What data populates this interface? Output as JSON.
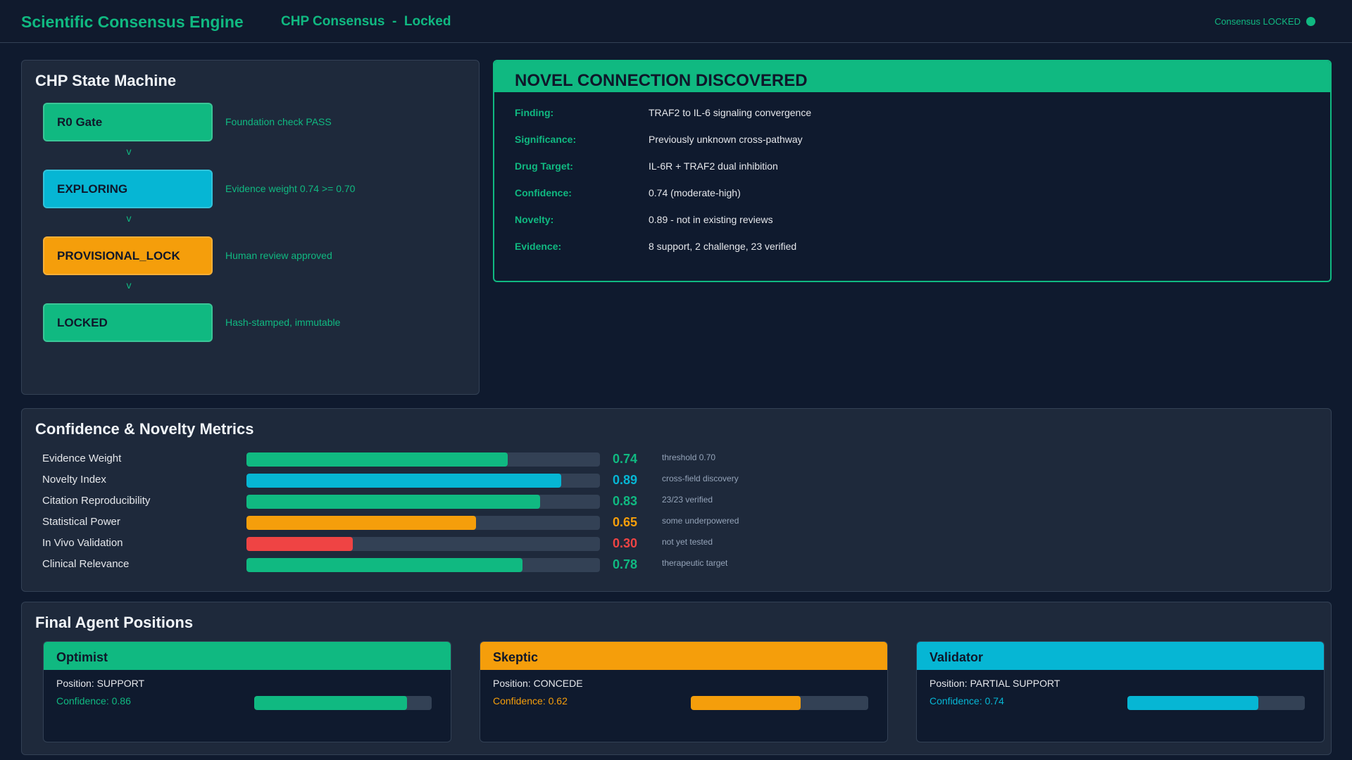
{
  "header": {
    "app_title": "Scientific Consensus Engine",
    "page_status": "CHP Consensus  -  Locked",
    "consensus_badge": "Consensus LOCKED"
  },
  "state_machine": {
    "title": "CHP State Machine",
    "arrow_glyph": "v",
    "states": [
      {
        "label": "R0 Gate",
        "desc": "Foundation check PASS",
        "color": "#10b981"
      },
      {
        "label": "EXPLORING",
        "desc": "Evidence weight 0.74 >= 0.70",
        "color": "#06b6d4"
      },
      {
        "label": "PROVISIONAL_LOCK",
        "desc": "Human review approved",
        "color": "#f59e0b"
      },
      {
        "label": "LOCKED",
        "desc": "Hash-stamped, immutable",
        "color": "#10b981"
      }
    ]
  },
  "discovery": {
    "title": "NOVEL CONNECTION DISCOVERED",
    "rows": [
      {
        "label": "Finding:",
        "value": "TRAF2 to IL-6 signaling convergence"
      },
      {
        "label": "Significance:",
        "value": "Previously unknown cross-pathway"
      },
      {
        "label": "Drug Target:",
        "value": "IL-6R + TRAF2 dual inhibition"
      },
      {
        "label": "Confidence:",
        "value": "0.74 (moderate-high)"
      },
      {
        "label": "Novelty:",
        "value": "0.89 - not in existing reviews"
      },
      {
        "label": "Evidence:",
        "value": "8 support, 2 challenge, 23 verified"
      }
    ]
  },
  "metrics": {
    "title": "Confidence & Novelty Metrics",
    "items": [
      {
        "label": "Evidence Weight",
        "value": 0.74,
        "value_text": "0.74",
        "note": "threshold 0.70",
        "color": "#10b981"
      },
      {
        "label": "Novelty Index",
        "value": 0.89,
        "value_text": "0.89",
        "note": "cross-field discovery",
        "color": "#06b6d4"
      },
      {
        "label": "Citation Reproducibility",
        "value": 0.83,
        "value_text": "0.83",
        "note": "23/23 verified",
        "color": "#10b981"
      },
      {
        "label": "Statistical Power",
        "value": 0.65,
        "value_text": "0.65",
        "note": "some underpowered",
        "color": "#f59e0b"
      },
      {
        "label": "In Vivo Validation",
        "value": 0.3,
        "value_text": "0.30",
        "note": "not yet tested",
        "color": "#ef4444"
      },
      {
        "label": "Clinical Relevance",
        "value": 0.78,
        "value_text": "0.78",
        "note": "therapeutic target",
        "color": "#10b981"
      }
    ]
  },
  "agents": {
    "title": "Final Agent Positions",
    "items": [
      {
        "name": "Optimist",
        "position": "Position: SUPPORT",
        "confidence_text": "Confidence: 0.86",
        "confidence": 0.86,
        "color": "#10b981"
      },
      {
        "name": "Skeptic",
        "position": "Position: CONCEDE",
        "confidence_text": "Confidence: 0.62",
        "confidence": 0.62,
        "color": "#f59e0b"
      },
      {
        "name": "Validator",
        "position": "Position: PARTIAL SUPPORT",
        "confidence_text": "Confidence: 0.74",
        "confidence": 0.74,
        "color": "#06b6d4"
      }
    ]
  }
}
